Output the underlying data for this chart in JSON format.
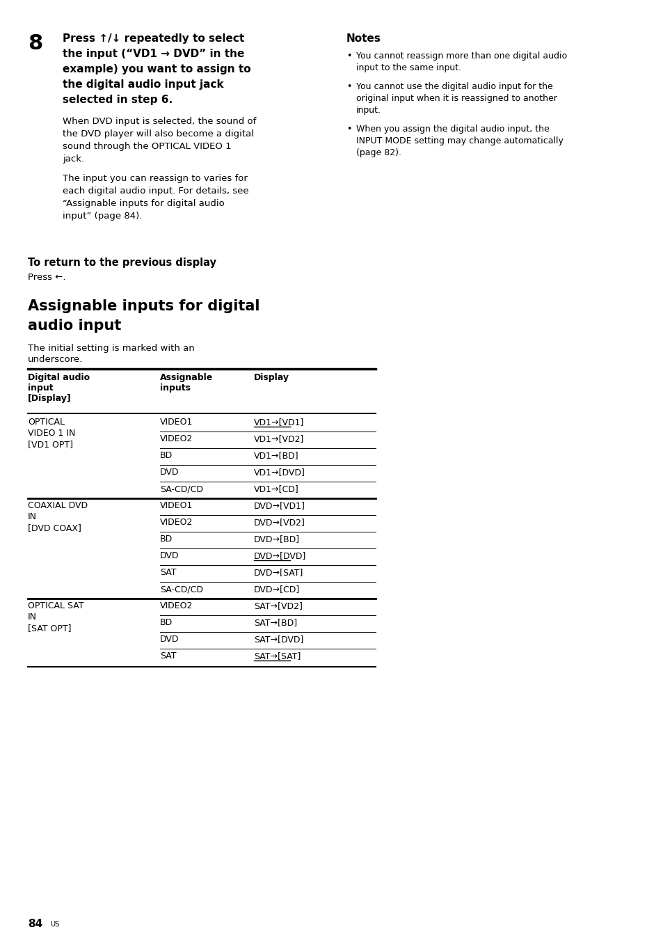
{
  "page_number": "84",
  "page_number_sup": "US",
  "background_color": "#ffffff",
  "bold_lines": [
    "Press ↑/↓ repeatedly to select",
    "the input (“VD1 → DVD” in the",
    "example) you want to assign to",
    "the digital audio input jack",
    "selected in step 6."
  ],
  "body_lines_1": [
    "When DVD input is selected, the sound of",
    "the DVD player will also become a digital",
    "sound through the OPTICAL VIDEO 1",
    "jack."
  ],
  "body_lines_2": [
    "The input you can reassign to varies for",
    "each digital audio input. For details, see",
    "“Assignable inputs for digital audio",
    "input” (page 84)."
  ],
  "notes_title": "Notes",
  "note_bullets": [
    [
      "You cannot reassign more than one digital audio",
      "input to the same input."
    ],
    [
      "You cannot use the digital audio input for the",
      "original input when it is reassigned to another",
      "input."
    ],
    [
      "When you assign the digital audio input, the",
      "INPUT MODE setting may change automatically",
      "(page 82)."
    ]
  ],
  "return_heading": "To return to the previous display",
  "return_body": "Press ←.",
  "section_line1": "Assignable inputs for digital",
  "section_line2": "audio input",
  "section_intro_line1": "The initial setting is marked with an",
  "section_intro_line2": "underscore.",
  "table_col1_header": "Digital audio\ninput\n[Display]",
  "table_col2_header": "Assignable\ninputs",
  "table_col3_header": "Display",
  "table_data": [
    [
      "OPTICAL\nVIDEO 1 IN\n[VD1 OPT]",
      "VIDEO1",
      "VD1→[VD1]",
      true
    ],
    [
      "",
      "VIDEO2",
      "VD1→[VD2]",
      false
    ],
    [
      "",
      "BD",
      "VD1→[BD]",
      false
    ],
    [
      "",
      "DVD",
      "VD1→[DVD]",
      false
    ],
    [
      "",
      "SA-CD/CD",
      "VD1→[CD]",
      false
    ],
    [
      "COAXIAL DVD\nIN\n[DVD COAX]",
      "VIDEO1",
      "DVD→[VD1]",
      false
    ],
    [
      "",
      "VIDEO2",
      "DVD→[VD2]",
      false
    ],
    [
      "",
      "BD",
      "DVD→[BD]",
      false
    ],
    [
      "",
      "DVD",
      "DVD→[DVD]",
      true
    ],
    [
      "",
      "SAT",
      "DVD→[SAT]",
      false
    ],
    [
      "",
      "SA-CD/CD",
      "DVD→[CD]",
      false
    ],
    [
      "OPTICAL SAT\nIN\n[SAT OPT]",
      "VIDEO2",
      "SAT→[VD2]",
      false
    ],
    [
      "",
      "BD",
      "SAT→[BD]",
      false
    ],
    [
      "",
      "DVD",
      "SAT→[DVD]",
      false
    ],
    [
      "",
      "SAT",
      "SAT→[SAT]",
      true
    ]
  ],
  "group_starts": [
    0,
    5,
    11
  ]
}
